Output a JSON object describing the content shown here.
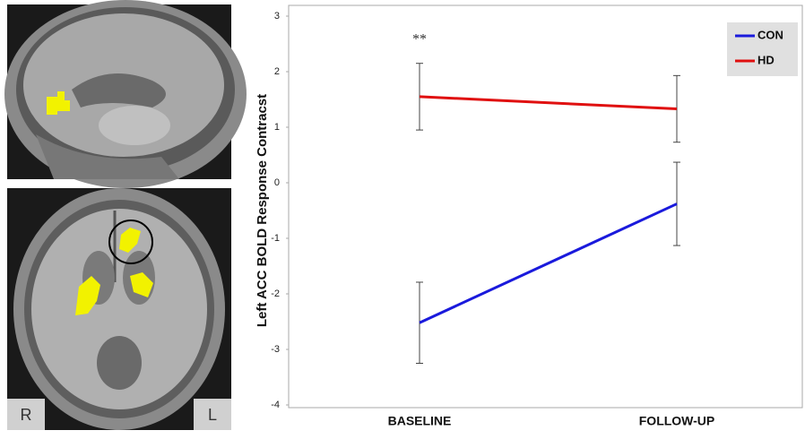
{
  "chart_data": {
    "type": "line",
    "y_label": "Left ACC BOLD Response Contracst",
    "annotation": "**",
    "categories": [
      "BASELINE",
      "FOLLOW-UP"
    ],
    "series": [
      {
        "name": "CON",
        "color": "#1a1adc",
        "values": [
          -2.52,
          -0.38
        ],
        "errors": [
          0.73,
          0.75
        ]
      },
      {
        "name": "HD",
        "color": "#e01010",
        "values": [
          1.55,
          1.33
        ],
        "errors": [
          0.6,
          0.6
        ]
      }
    ],
    "ylim": [
      -4,
      3
    ],
    "yticks": [
      -4,
      -3,
      -2,
      -1,
      0,
      1,
      2,
      3
    ],
    "legend": "upper right"
  },
  "image_labels": [
    "R",
    "L"
  ]
}
